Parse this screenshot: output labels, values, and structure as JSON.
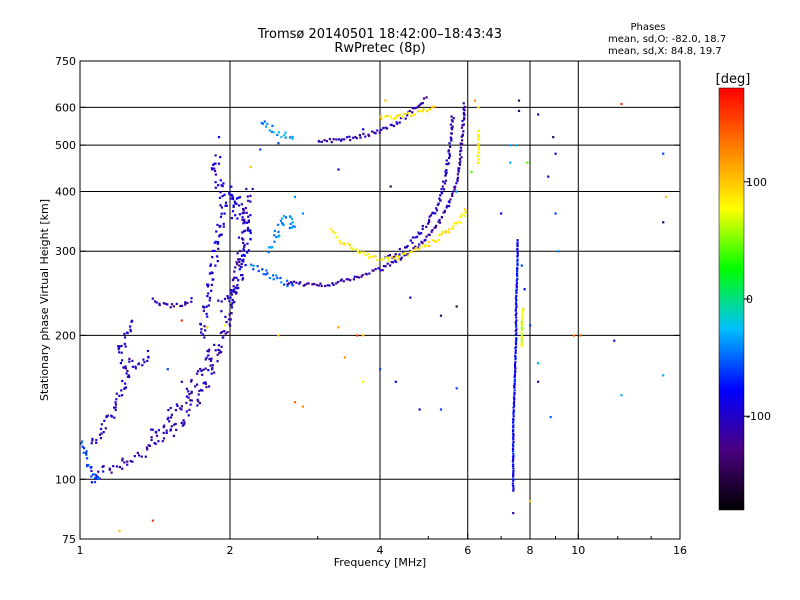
{
  "chart_data": {
    "type": "scatter",
    "title": "Tromsø 20140501 18:42:00–18:43:43",
    "subtitle": "RwPretec (8p)",
    "xlabel": "Frequency [MHz]",
    "ylabel": "Stationary phase Virtual Height [km]",
    "x_scale": "log",
    "y_scale": "log",
    "xlim": [
      1,
      16
    ],
    "ylim": [
      75,
      750
    ],
    "x_ticks": [
      1,
      2,
      4,
      6,
      8,
      10,
      16
    ],
    "x_tick_labels": [
      "1",
      "2",
      "4",
      "6",
      "8",
      "10",
      "16"
    ],
    "y_ticks": [
      75,
      100,
      200,
      300,
      400,
      500,
      600,
      750
    ],
    "y_tick_labels": [
      "75",
      "100",
      "200",
      "300",
      "400",
      "500",
      "600",
      "750"
    ],
    "grid_x": [
      2,
      4,
      6,
      8,
      10
    ],
    "grid_y": [
      100,
      200,
      300,
      400,
      500,
      600
    ],
    "stats": {
      "title": "Phases",
      "line_o": "mean, sd,O: -82.0, 18.7",
      "line_x": "mean, sd,X:  84.8, 19.7"
    },
    "colorbar": {
      "label": "[deg]",
      "range": [
        -180,
        180
      ],
      "ticks": [
        100,
        0,
        -100
      ],
      "tick_labels": [
        "100",
        "0",
        "-100"
      ],
      "colors": [
        "#000000",
        "#4b0082",
        "#0000ff",
        "#00bfff",
        "#00ff00",
        "#ffff00",
        "#ff7f00",
        "#ff0000"
      ]
    },
    "traces": [
      {
        "phase": -110,
        "spread": 0.6,
        "points": [
          [
            1.05,
            100
          ],
          [
            1.1,
            104
          ],
          [
            1.2,
            108
          ],
          [
            1.3,
            112
          ],
          [
            1.4,
            118
          ],
          [
            1.5,
            124
          ],
          [
            1.6,
            132
          ],
          [
            1.7,
            145
          ],
          [
            1.8,
            165
          ],
          [
            1.9,
            185
          ],
          [
            1.95,
            200
          ],
          [
            2.0,
            230
          ],
          [
            2.05,
            260
          ],
          [
            2.1,
            300
          ],
          [
            2.15,
            350
          ],
          [
            2.2,
            400
          ]
        ]
      },
      {
        "phase": -95,
        "spread": 0.5,
        "points": [
          [
            1.75,
            200
          ],
          [
            1.8,
            240
          ],
          [
            1.85,
            280
          ],
          [
            1.9,
            330
          ],
          [
            1.95,
            380
          ],
          [
            1.9,
            420
          ],
          [
            1.85,
            450
          ],
          [
            1.9,
            480
          ]
        ]
      },
      {
        "phase": -90,
        "spread": 0.45,
        "points": [
          [
            1.9,
            230
          ],
          [
            2.0,
            240
          ],
          [
            2.1,
            260
          ],
          [
            2.15,
            300
          ],
          [
            2.2,
            330
          ],
          [
            2.1,
            370
          ],
          [
            2.0,
            400
          ],
          [
            2.05,
            350
          ]
        ]
      },
      {
        "phase": -105,
        "spread": 0.6,
        "points": [
          [
            1.4,
            125
          ],
          [
            1.5,
            132
          ],
          [
            1.6,
            145
          ],
          [
            1.7,
            160
          ],
          [
            1.8,
            175
          ],
          [
            1.85,
            190
          ]
        ]
      },
      {
        "phase": -110,
        "spread": 0.2,
        "points": [
          [
            1.4,
            238
          ],
          [
            1.45,
            232
          ],
          [
            1.5,
            230
          ],
          [
            1.55,
            230
          ],
          [
            1.6,
            232
          ],
          [
            1.65,
            236
          ],
          [
            1.7,
            240
          ]
        ]
      },
      {
        "phase": -105,
        "spread": 0.25,
        "points": [
          [
            1.25,
            178
          ],
          [
            1.3,
            172
          ],
          [
            1.35,
            178
          ],
          [
            1.38,
            186
          ]
        ]
      },
      {
        "phase": -100,
        "spread": 0.4,
        "points": [
          [
            1.05,
            118
          ],
          [
            1.1,
            125
          ],
          [
            1.15,
            135
          ],
          [
            1.2,
            150
          ],
          [
            1.25,
            165
          ],
          [
            1.2,
            185
          ],
          [
            1.25,
            205
          ],
          [
            1.27,
            215
          ]
        ]
      },
      {
        "phase": -60,
        "spread": 0.3,
        "points": [
          [
            1.0,
            120
          ],
          [
            1.03,
            112
          ],
          [
            1.05,
            104
          ],
          [
            1.07,
            99
          ],
          [
            1.1,
            102
          ]
        ]
      },
      {
        "phase": -40,
        "spread": 0.4,
        "points": [
          [
            2.4,
            300
          ],
          [
            2.5,
            330
          ],
          [
            2.55,
            350
          ],
          [
            2.6,
            360
          ],
          [
            2.7,
            345
          ],
          [
            2.65,
            330
          ]
        ]
      },
      {
        "phase": -35,
        "spread": 0.25,
        "points": [
          [
            2.3,
            560
          ],
          [
            2.4,
            545
          ],
          [
            2.5,
            530
          ],
          [
            2.6,
            522
          ],
          [
            2.7,
            515
          ]
        ]
      },
      {
        "phase": -50,
        "spread": 0.25,
        "points": [
          [
            2.2,
            280
          ],
          [
            2.35,
            270
          ],
          [
            2.5,
            262
          ],
          [
            2.7,
            255
          ]
        ]
      },
      {
        "phase": -110,
        "spread": 0.15,
        "points": [
          [
            2.6,
            258
          ],
          [
            2.8,
            256
          ],
          [
            3.0,
            255
          ],
          [
            3.3,
            258
          ],
          [
            3.6,
            265
          ],
          [
            4.0,
            275
          ],
          [
            4.4,
            290
          ],
          [
            4.8,
            310
          ],
          [
            5.2,
            340
          ],
          [
            5.5,
            375
          ],
          [
            5.7,
            420
          ],
          [
            5.8,
            470
          ],
          [
            5.85,
            530
          ],
          [
            5.9,
            580
          ],
          [
            5.9,
            620
          ]
        ]
      },
      {
        "phase": -110,
        "spread": 0.15,
        "points": [
          [
            3.0,
            510
          ],
          [
            3.3,
            512
          ],
          [
            3.6,
            520
          ],
          [
            4.0,
            535
          ],
          [
            4.3,
            555
          ],
          [
            4.6,
            585
          ],
          [
            4.8,
            610
          ],
          [
            5.0,
            630
          ]
        ]
      },
      {
        "phase": -105,
        "spread": 0.2,
        "points": [
          [
            4.1,
            290
          ],
          [
            4.4,
            300
          ],
          [
            4.7,
            320
          ],
          [
            5.0,
            345
          ],
          [
            5.2,
            365
          ],
          [
            5.3,
            390
          ],
          [
            5.4,
            430
          ],
          [
            5.5,
            480
          ],
          [
            5.55,
            530
          ],
          [
            5.6,
            580
          ]
        ]
      },
      {
        "phase": 85,
        "spread": 0.2,
        "points": [
          [
            3.2,
            330
          ],
          [
            3.4,
            310
          ],
          [
            3.6,
            300
          ],
          [
            3.8,
            292
          ],
          [
            4.0,
            288
          ],
          [
            4.3,
            290
          ],
          [
            4.6,
            298
          ],
          [
            5.0,
            310
          ],
          [
            5.4,
            328
          ],
          [
            5.8,
            348
          ],
          [
            6.0,
            370
          ]
        ]
      },
      {
        "phase": 90,
        "spread": 0.15,
        "points": [
          [
            4.0,
            570
          ],
          [
            4.3,
            572
          ],
          [
            4.6,
            580
          ],
          [
            4.9,
            590
          ],
          [
            5.2,
            600
          ]
        ]
      },
      {
        "phase": 80,
        "spread": 0.1,
        "points": [
          [
            6.3,
            460
          ],
          [
            6.3,
            500
          ],
          [
            6.3,
            540
          ]
        ]
      },
      {
        "phase": -80,
        "spread": 0.05,
        "points": [
          [
            7.4,
            95
          ],
          [
            7.4,
            130
          ],
          [
            7.45,
            160
          ],
          [
            7.5,
            200
          ],
          [
            7.5,
            240
          ],
          [
            7.55,
            280
          ],
          [
            7.55,
            320
          ]
        ]
      },
      {
        "phase": 70,
        "spread": 0.05,
        "points": [
          [
            7.7,
            190
          ],
          [
            7.7,
            210
          ],
          [
            7.75,
            230
          ]
        ]
      }
    ],
    "scatter_points": [
      [
        7.6,
        620,
        -140
      ],
      [
        7.6,
        590,
        -140
      ],
      [
        6.2,
        620,
        120
      ],
      [
        6.3,
        600,
        80
      ],
      [
        8.3,
        580,
        -100
      ],
      [
        8.9,
        520,
        -140
      ],
      [
        9.0,
        480,
        -100
      ],
      [
        7.3,
        500,
        -30
      ],
      [
        7.3,
        460,
        -30
      ],
      [
        12.2,
        610,
        160
      ],
      [
        14.8,
        480,
        -60
      ],
      [
        15.0,
        390,
        100
      ],
      [
        14.8,
        345,
        -140
      ],
      [
        4.1,
        620,
        100
      ],
      [
        4.3,
        570,
        80
      ],
      [
        3.7,
        540,
        -80
      ],
      [
        3.3,
        445,
        -100
      ],
      [
        4.2,
        410,
        -140
      ],
      [
        5.7,
        400,
        -40
      ],
      [
        4.6,
        240,
        -100
      ],
      [
        5.7,
        230,
        -140
      ],
      [
        5.3,
        220,
        -140
      ],
      [
        2.5,
        505,
        -60
      ],
      [
        2.3,
        490,
        -60
      ],
      [
        2.2,
        450,
        100
      ],
      [
        1.9,
        520,
        -80
      ],
      [
        2.5,
        200,
        100
      ],
      [
        3.3,
        208,
        120
      ],
      [
        3.6,
        200,
        160
      ],
      [
        3.7,
        200,
        100
      ],
      [
        3.4,
        180,
        120
      ],
      [
        3.7,
        160,
        80
      ],
      [
        4.0,
        170,
        -60
      ],
      [
        4.3,
        160,
        -80
      ],
      [
        4.8,
        140,
        -100
      ],
      [
        5.3,
        140,
        -60
      ],
      [
        5.7,
        155,
        -60
      ],
      [
        2.7,
        145,
        140
      ],
      [
        2.8,
        142,
        120
      ],
      [
        1.6,
        215,
        160
      ],
      [
        1.5,
        170,
        -60
      ],
      [
        1.6,
        160,
        -100
      ],
      [
        1.8,
        208,
        100
      ],
      [
        1.95,
        210,
        80
      ],
      [
        1.2,
        78,
        100
      ],
      [
        1.4,
        82,
        160
      ],
      [
        8.0,
        90,
        100
      ],
      [
        7.4,
        85,
        -110
      ],
      [
        7.7,
        280,
        -60
      ],
      [
        7.8,
        250,
        -80
      ],
      [
        8.0,
        210,
        -60
      ],
      [
        8.3,
        175,
        -30
      ],
      [
        8.3,
        160,
        -120
      ],
      [
        8.8,
        135,
        -50
      ],
      [
        9.8,
        200,
        140
      ],
      [
        10.1,
        200,
        140
      ],
      [
        11.8,
        195,
        -100
      ],
      [
        12.2,
        150,
        -30
      ],
      [
        14.8,
        165,
        -30
      ],
      [
        8.7,
        430,
        -100
      ],
      [
        7.9,
        460,
        40
      ],
      [
        7.5,
        500,
        -30
      ],
      [
        9.1,
        300,
        -40
      ],
      [
        9.0,
        360,
        -60
      ],
      [
        7.0,
        360,
        -80
      ],
      [
        6.1,
        440,
        40
      ],
      [
        2.7,
        390,
        -40
      ],
      [
        2.8,
        360,
        -40
      ]
    ]
  }
}
